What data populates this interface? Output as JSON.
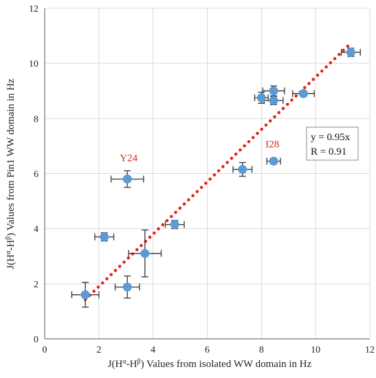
{
  "chart_data": {
    "type": "scatter",
    "xlabel": "J(Hα-Hβ) Values from isolated WW domain in Hz",
    "ylabel": "J(Hα-Hβ) Values from Pin1 WW domain in Hz",
    "xlim": [
      0,
      12
    ],
    "ylim": [
      0,
      12
    ],
    "x_ticks": [
      0,
      2,
      4,
      6,
      8,
      10,
      12
    ],
    "y_ticks": [
      0,
      2,
      4,
      6,
      8,
      10,
      12
    ],
    "grid": true,
    "points": [
      {
        "x": 1.5,
        "y": 1.6,
        "xerr": 0.5,
        "yerr": 0.45
      },
      {
        "x": 2.2,
        "y": 3.7,
        "xerr": 0.35,
        "yerr": 0.15
      },
      {
        "x": 3.05,
        "y": 1.88,
        "xerr": 0.45,
        "yerr": 0.4
      },
      {
        "x": 3.05,
        "y": 5.8,
        "xerr": 0.6,
        "yerr": 0.3
      },
      {
        "x": 3.7,
        "y": 3.1,
        "xerr": 0.6,
        "yerr": 0.85
      },
      {
        "x": 4.8,
        "y": 4.15,
        "xerr": 0.35,
        "yerr": 0.15
      },
      {
        "x": 7.3,
        "y": 6.15,
        "xerr": 0.35,
        "yerr": 0.25
      },
      {
        "x": 8.0,
        "y": 8.75,
        "xerr": 0.25,
        "yerr": 0.2
      },
      {
        "x": 8.45,
        "y": 8.65,
        "xerr": 0.35,
        "yerr": 0.15
      },
      {
        "x": 8.45,
        "y": 9.0,
        "xerr": 0.4,
        "yerr": 0.18
      },
      {
        "x": 8.45,
        "y": 6.45,
        "xerr": 0.25,
        "yerr": 0.1
      },
      {
        "x": 9.55,
        "y": 8.9,
        "xerr": 0.4,
        "yerr": 0.1
      },
      {
        "x": 11.3,
        "y": 10.4,
        "xerr": 0.35,
        "yerr": 0.15
      }
    ],
    "trendline": {
      "slope": 0.95,
      "x_range": [
        1.5,
        11.3
      ],
      "style": "dotted",
      "color": "#e32119"
    },
    "point_color": "#5b9bd5",
    "errorbar_color": "#404040",
    "annotations": [
      {
        "text": "Y24",
        "x": 3.1,
        "y": 6.45
      },
      {
        "text": "I28",
        "x": 8.4,
        "y": 6.95
      }
    ],
    "equation_box": {
      "line1": "y = 0.95x",
      "line2": "R = 0.91"
    }
  }
}
